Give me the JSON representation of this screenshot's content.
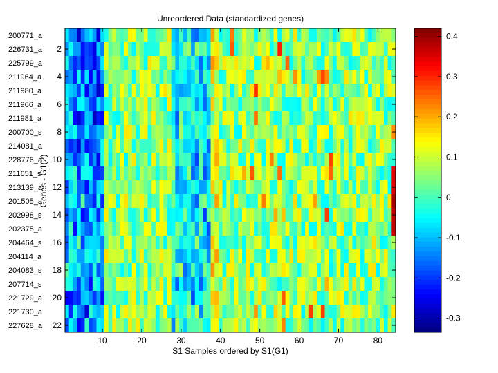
{
  "chart_data": {
    "type": "heatmap",
    "title": "Unreordered Data (standardized genes)",
    "xlabel": "S1 Samples ordered by S1(G1)",
    "ylabel": "Genes - G1(2)",
    "n_columns": 84,
    "x_ticks": [
      10,
      20,
      30,
      40,
      50,
      60,
      70,
      80
    ],
    "y_ticks": [
      2,
      4,
      6,
      8,
      10,
      12,
      14,
      16,
      18,
      20,
      22
    ],
    "row_labels": [
      "200771_a",
      "226731_a",
      "225799_a",
      "211964_a",
      "211980_a",
      "211966_a",
      "211981_a",
      "200700_s",
      "214081_a",
      "228776_a",
      "211651_s",
      "213139_a",
      "201505_a",
      "202998_s",
      "202375_a",
      "204464_s",
      "204114_a",
      "204083_s",
      "207714_s",
      "221729_a",
      "221730_a",
      "227628_a"
    ],
    "colorbar": {
      "colormap": "jet",
      "clim": [
        -0.335,
        0.42
      ],
      "ticks": [
        -0.3,
        -0.2,
        -0.1,
        0,
        0.1,
        0.2,
        0.3,
        0.4
      ],
      "tick_labels": [
        "-0.3",
        "-0.2",
        "-0.1",
        "0",
        "0.1",
        "0.2",
        "0.3",
        "0.4"
      ]
    },
    "values_note": "Approximate per-cell values generated from visual patterns: low (blue) values in columns ~2-10, blue band near columns 28-37, high (red) values in last column for rows 11-15; remaining cells vary around 0 to 0.1."
  }
}
